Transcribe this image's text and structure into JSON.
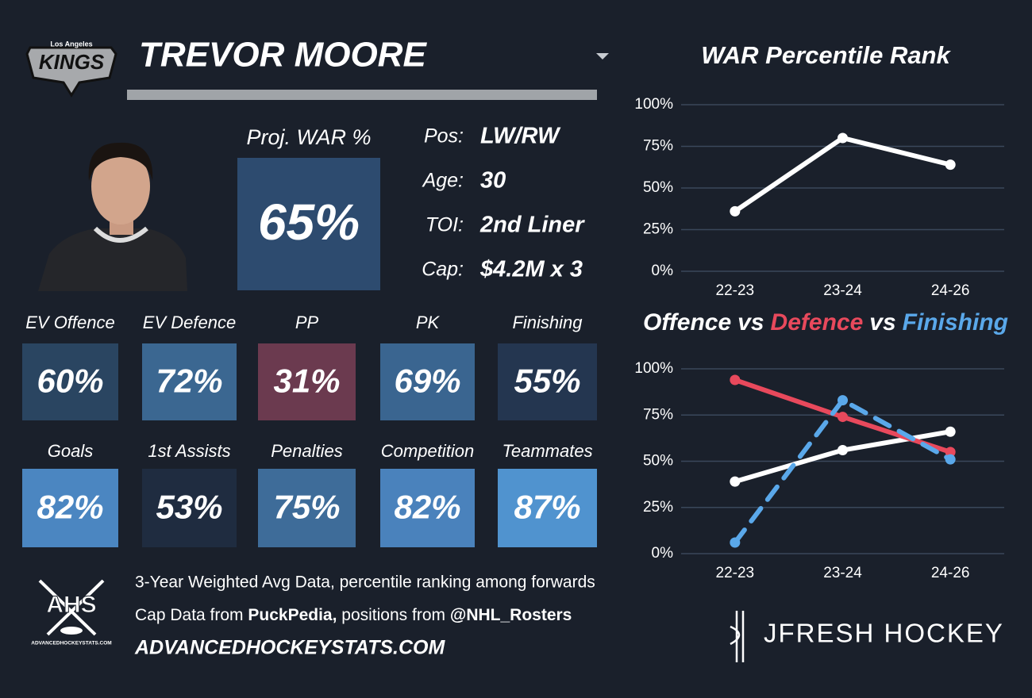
{
  "header": {
    "team_city": "Los Angeles",
    "team_name": "KINGS",
    "player_name": "TREVOR MOORE"
  },
  "proj_war": {
    "label": "Proj. WAR %",
    "value": 65,
    "value_label": "65%",
    "color": "#2d4b6f"
  },
  "bio": [
    {
      "label": "Pos:",
      "value": "LW/RW"
    },
    {
      "label": "Age:",
      "value": "30"
    },
    {
      "label": "TOI:",
      "value": "2nd Liner"
    },
    {
      "label": "Cap:",
      "value": "$4.2M x 3"
    }
  ],
  "tiles": [
    {
      "label": "EV Offence",
      "value": 60,
      "value_label": "60%",
      "color": "#2a4561"
    },
    {
      "label": "EV Defence",
      "value": 72,
      "value_label": "72%",
      "color": "#3b6791"
    },
    {
      "label": "PP",
      "value": 31,
      "value_label": "31%",
      "color": "#6b3a4f"
    },
    {
      "label": "PK",
      "value": 69,
      "value_label": "69%",
      "color": "#3a6590"
    },
    {
      "label": "Finishing",
      "value": 55,
      "value_label": "55%",
      "color": "#243650"
    },
    {
      "label": "Goals",
      "value": 82,
      "value_label": "82%",
      "color": "#4b86c1"
    },
    {
      "label": "1st Assists",
      "value": 53,
      "value_label": "53%",
      "color": "#1f2c40"
    },
    {
      "label": "Penalties",
      "value": 75,
      "value_label": "75%",
      "color": "#3e6c99"
    },
    {
      "label": "Competition",
      "value": 82,
      "value_label": "82%",
      "color": "#4a82bc"
    },
    {
      "label": "Teammates",
      "value": 87,
      "value_label": "87%",
      "color": "#5093cf"
    }
  ],
  "footer": {
    "note": "3-Year Weighted Avg Data, percentile ranking among forwards",
    "sources": [
      "Cap Data from ",
      "PuckPedia,",
      " positions from ",
      "@NHL_Rosters"
    ],
    "website": "ADVANCEDHOCKEYSTATS.COM",
    "ahs_logo": "AHS",
    "ahs_site": "ADVANCEDHOCKEYSTATS.COM",
    "brand": "JFRESH HOCKEY"
  },
  "chart_data": [
    {
      "type": "line",
      "title": "WAR Percentile Rank",
      "categories": [
        "22-23",
        "23-24",
        "24-26"
      ],
      "series": [
        {
          "color": "#ffffff",
          "values": [
            36,
            80,
            64
          ]
        }
      ],
      "ylim": [
        0,
        100
      ],
      "yticks": [
        {
          "value": 0,
          "label": "0%"
        },
        {
          "value": 25,
          "label": "25%"
        },
        {
          "value": 50,
          "label": "50%"
        },
        {
          "value": 75,
          "label": "75%"
        },
        {
          "value": 100,
          "label": "100%"
        }
      ],
      "grid": true
    },
    {
      "type": "line",
      "title_joiner": "vs",
      "categories": [
        "22-23",
        "23-24",
        "24-26"
      ],
      "series": [
        {
          "name": "Offence",
          "color": "#ffffff",
          "values": [
            39,
            56,
            66
          ]
        },
        {
          "name": "Defence",
          "color": "#e8495c",
          "values": [
            94,
            74,
            55
          ]
        },
        {
          "name": "Finishing",
          "color": "#5aa8ea",
          "values": [
            6,
            83,
            51
          ],
          "dashed": true
        }
      ],
      "ylim": [
        0,
        100
      ],
      "yticks": [
        {
          "value": 0,
          "label": "0%"
        },
        {
          "value": 25,
          "label": "25%"
        },
        {
          "value": 50,
          "label": "50%"
        },
        {
          "value": 75,
          "label": "75%"
        },
        {
          "value": 100,
          "label": "100%"
        }
      ],
      "grid": true
    }
  ]
}
